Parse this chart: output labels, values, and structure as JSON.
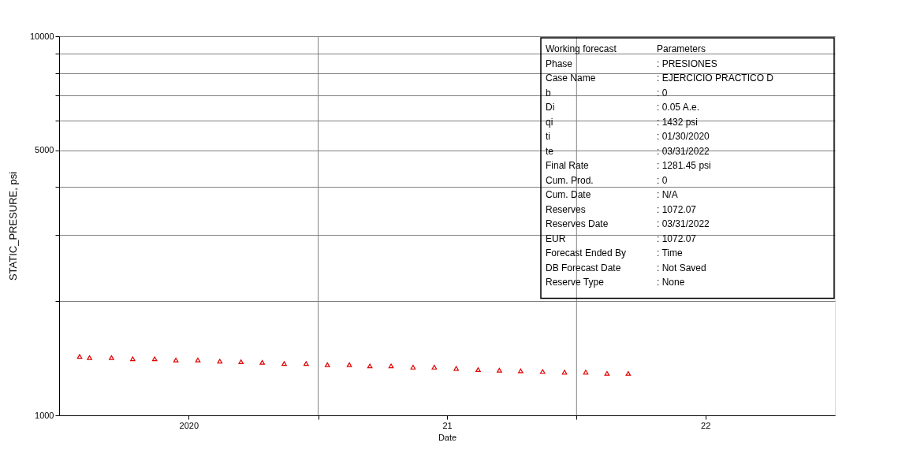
{
  "chart_data": {
    "type": "scatter",
    "xlabel": "Date",
    "ylabel": "STATIC_PRESURE, psi",
    "x": [
      "2020-01-30",
      "2020-02-13",
      "2020-03-15",
      "2020-04-14",
      "2020-05-15",
      "2020-06-14",
      "2020-07-15",
      "2020-08-15",
      "2020-09-14",
      "2020-10-14",
      "2020-11-14",
      "2020-12-15",
      "2021-01-14",
      "2021-02-14",
      "2021-03-15",
      "2021-04-14",
      "2021-05-15",
      "2021-06-14",
      "2021-07-15",
      "2021-08-15",
      "2021-09-14",
      "2021-10-14",
      "2021-11-14",
      "2021-12-15",
      "2022-01-14",
      "2022-02-13",
      "2022-03-15"
    ],
    "series": [
      {
        "color": "#e00000",
        "values": [
          1430,
          1420,
          1420,
          1410,
          1410,
          1400,
          1400,
          1390,
          1385,
          1380,
          1370,
          1370,
          1360,
          1360,
          1350,
          1350,
          1340,
          1340,
          1330,
          1320,
          1315,
          1310,
          1305,
          1300,
          1300,
          1290,
          1290
        ]
      }
    ],
    "marker": "triangle",
    "log": "y",
    "xlim": [
      "2020-01-01",
      "2023-01-01"
    ],
    "xticks": [
      {
        "value": "2020-07-02",
        "label": "2020"
      },
      {
        "value": "2021-07-02",
        "label": "21"
      },
      {
        "value": "2022-07-02",
        "label": "22"
      },
      {
        "value": "2021-01-01",
        "label": null
      },
      {
        "value": "2022-01-01",
        "label": null
      }
    ],
    "ylim": [
      1000,
      10000
    ],
    "yticks": [
      1000,
      {
        "value": 2000,
        "label": null
      },
      {
        "value": 3000,
        "label": null
      },
      {
        "value": 4000,
        "label": null
      },
      5000,
      {
        "value": 6000,
        "label": null
      },
      {
        "value": 7000,
        "label": null
      },
      {
        "value": 8000,
        "label": null
      },
      {
        "value": 9000,
        "label": null
      },
      10000
    ],
    "grid": "y",
    "ref_lines": [
      {
        "axis": "x",
        "value": "2021-01-01",
        "color": "#808080"
      },
      {
        "axis": "x",
        "value": "2022-01-01",
        "color": "#808080"
      }
    ],
    "annotations": [
      "Working forecast",
      "Parameters",
      "Phase",
      ": PRESIONES",
      "Case Name",
      ": EJERCICIO PRACTICO D",
      "b",
      ": 0",
      "Di",
      ": 0.05 A.e.",
      "qi",
      ": 1432 psi",
      "ti",
      ": 01/30/2020",
      "te",
      ": 03/31/2022",
      "Final Rate",
      ": 1281.45 psi",
      "Cum. Prod.",
      ": 0",
      "Cum. Date",
      ": N/A",
      "Reserves",
      ": 1072.07",
      "Reserves Date",
      ": 03/31/2022",
      "EUR",
      ": 1072.07",
      "Forecast Ended By",
      ": Time",
      "DB Forecast Date",
      ": Not Saved",
      "Reserve Type",
      ": None"
    ]
  }
}
